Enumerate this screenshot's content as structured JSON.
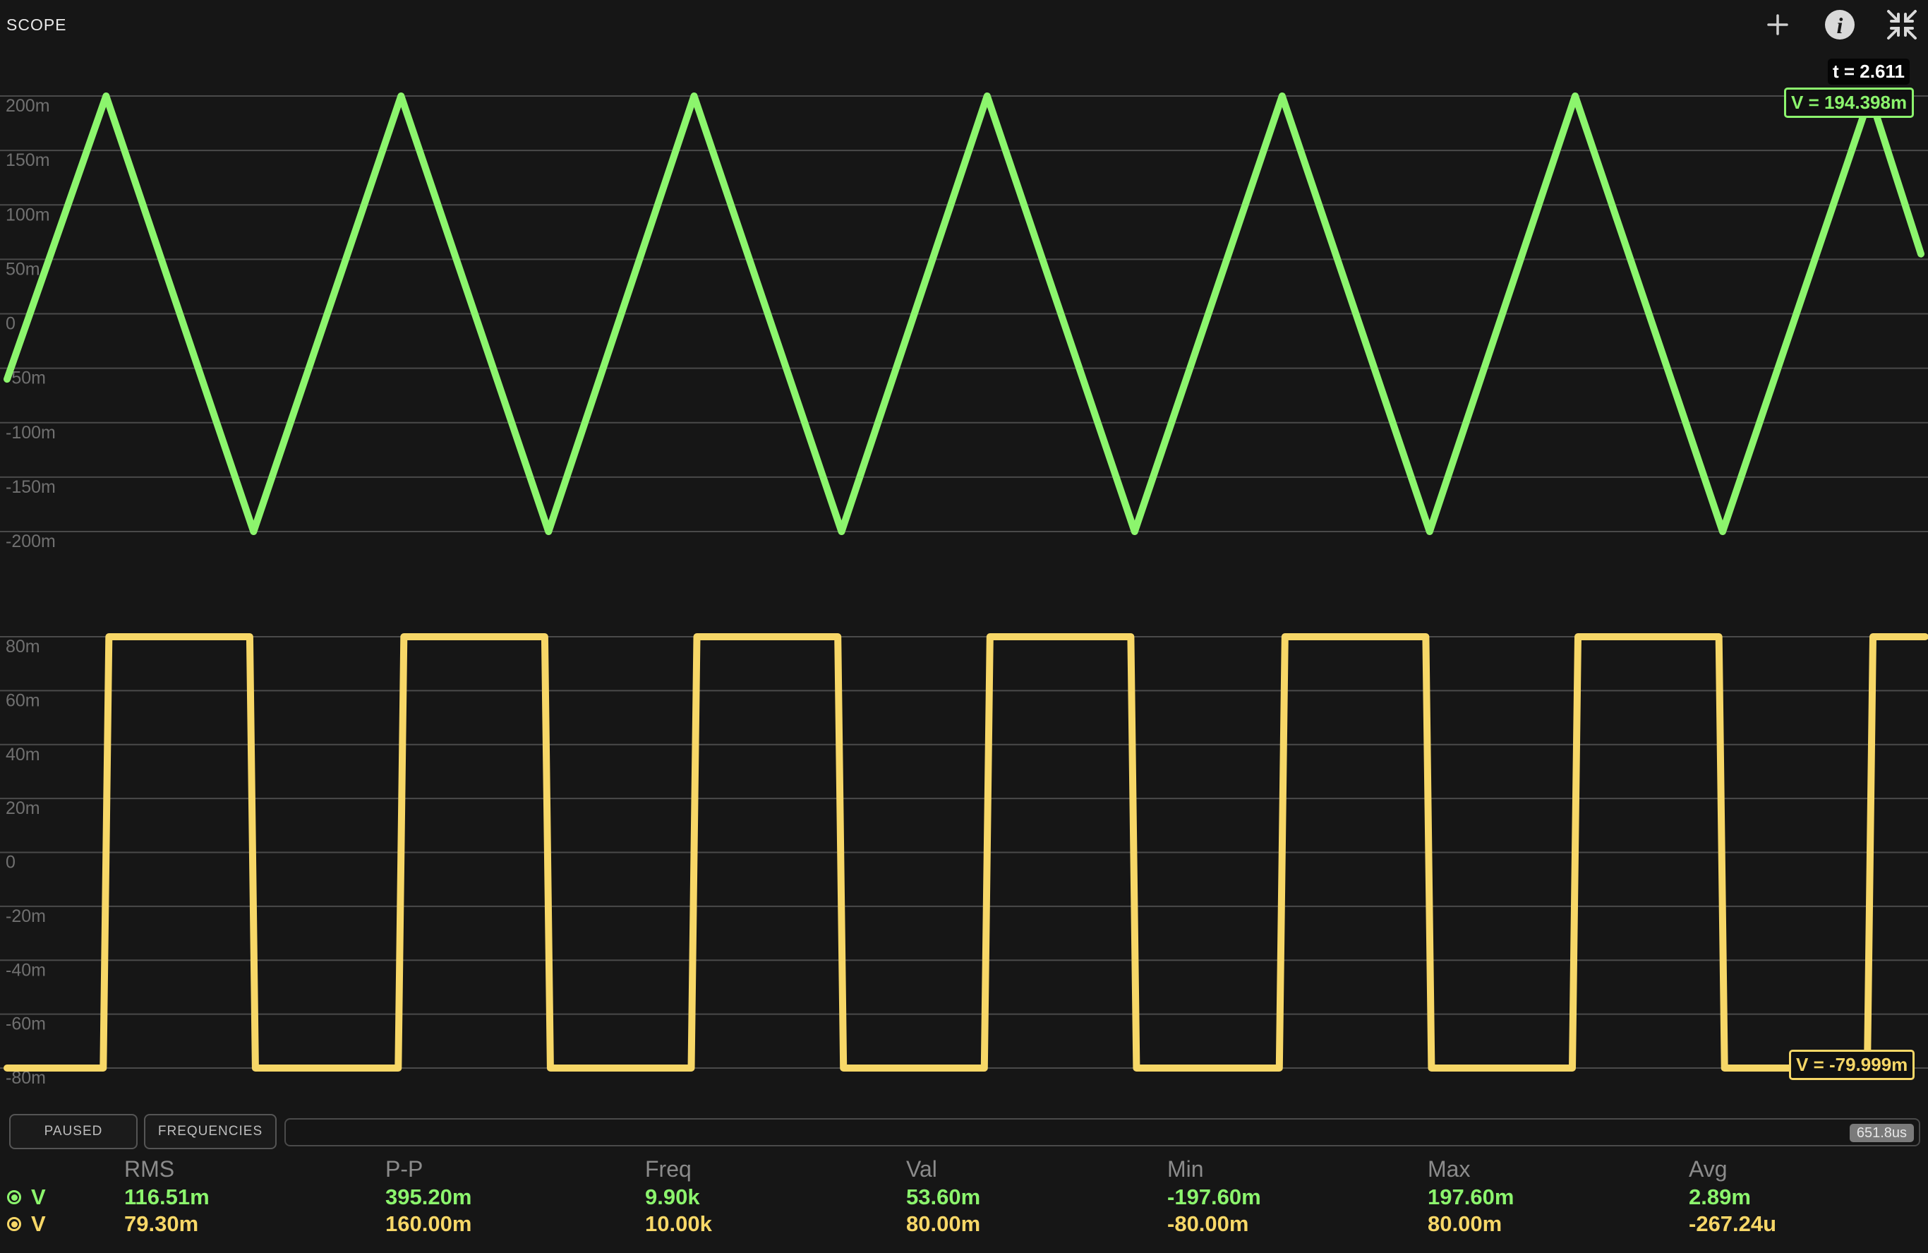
{
  "app": {
    "title": "SCOPE"
  },
  "colors": {
    "ch1": "#8cf56d",
    "ch2": "#f7d767",
    "grid": "#4a4a4a",
    "axis_text": "#707070"
  },
  "toolbar": {
    "icons": [
      "plus-icon",
      "info-icon",
      "collapse-icon"
    ]
  },
  "cursor": {
    "time": "t = 2.611",
    "ch1_value": "V = 194.398m",
    "ch2_value": "V = -79.999m"
  },
  "chart_data": [
    {
      "type": "line",
      "series": [
        {
          "name": "V",
          "waveform": "triangle",
          "min": -200,
          "max": 200,
          "unit": "mV"
        }
      ],
      "yticks": [
        "200m",
        "150m",
        "100m",
        "50m",
        "0",
        "-50m",
        "-100m",
        "-150m",
        "-200m"
      ],
      "ylim": [
        -200,
        200
      ],
      "x_peaks": [
        0.055,
        0.208,
        0.36,
        0.512,
        0.665,
        0.817,
        0.97
      ],
      "grid": true
    },
    {
      "type": "line",
      "series": [
        {
          "name": "V",
          "waveform": "square",
          "low": -80,
          "high": 80,
          "unit": "mV"
        }
      ],
      "yticks": [
        "80m",
        "60m",
        "40m",
        "20m",
        "0",
        "-20m",
        "-40m",
        "-60m",
        "-80m"
      ],
      "ylim": [
        -80,
        80
      ],
      "x_rises": [
        0.055,
        0.208,
        0.36,
        0.512,
        0.665,
        0.817,
        0.97
      ],
      "x_falls": [
        0.131,
        0.284,
        0.436,
        0.588,
        0.741,
        0.893
      ],
      "grid": true
    }
  ],
  "controls": {
    "paused_label": "PAUSED",
    "frequencies_label": "FREQUENCIES",
    "scroll_label": "651.8us"
  },
  "stats": {
    "headers": [
      "RMS",
      "P-P",
      "Freq",
      "Val",
      "Min",
      "Max",
      "Avg"
    ],
    "rows": [
      {
        "label": "V",
        "values": [
          "116.51m",
          "395.20m",
          "9.90k",
          "53.60m",
          "-197.60m",
          "197.60m",
          "2.89m"
        ]
      },
      {
        "label": "V",
        "values": [
          "79.30m",
          "160.00m",
          "10.00k",
          "80.00m",
          "-80.00m",
          "80.00m",
          "-267.24u"
        ]
      }
    ]
  }
}
